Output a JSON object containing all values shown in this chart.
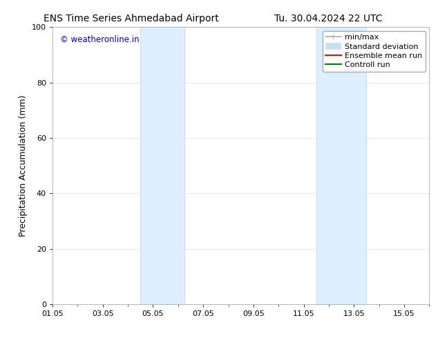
{
  "title_left": "ENS Time Series Ahmedabad Airport",
  "title_right": "Tu. 30.04.2024 22 UTC",
  "ylabel": "Precipitation Accumulation (mm)",
  "watermark": "© weatheronline.in",
  "watermark_color": "#0000cc",
  "ylim": [
    0,
    100
  ],
  "yticks": [
    0,
    20,
    40,
    60,
    80,
    100
  ],
  "xlim": [
    0,
    15
  ],
  "x_tick_labels": [
    "01.05",
    "03.05",
    "05.05",
    "07.05",
    "09.05",
    "11.05",
    "13.05",
    "15.05"
  ],
  "x_tick_positions": [
    0,
    2,
    4,
    6,
    8,
    10,
    12,
    14
  ],
  "shaded_bands": [
    {
      "x_start": 3.5,
      "x_end": 5.25
    },
    {
      "x_start": 10.5,
      "x_end": 12.5
    }
  ],
  "shaded_color": "#ddeeff",
  "shaded_edge_color": "#c0d8ee",
  "background_color": "#ffffff",
  "legend_entries": [
    {
      "label": "min/max",
      "color": "#aaaaaa",
      "lw": 1.2,
      "linestyle": "-",
      "type": "minmax"
    },
    {
      "label": "Standard deviation",
      "color": "#c8dff0",
      "lw": 7,
      "linestyle": "-",
      "type": "fill"
    },
    {
      "label": "Ensemble mean run",
      "color": "#ff0000",
      "lw": 1.5,
      "linestyle": "-",
      "type": "line"
    },
    {
      "label": "Controll run",
      "color": "#007700",
      "lw": 1.5,
      "linestyle": "-",
      "type": "line"
    }
  ],
  "grid_color": "#dddddd",
  "title_fontsize": 10,
  "ylabel_fontsize": 9,
  "tick_fontsize": 8,
  "legend_fontsize": 8
}
